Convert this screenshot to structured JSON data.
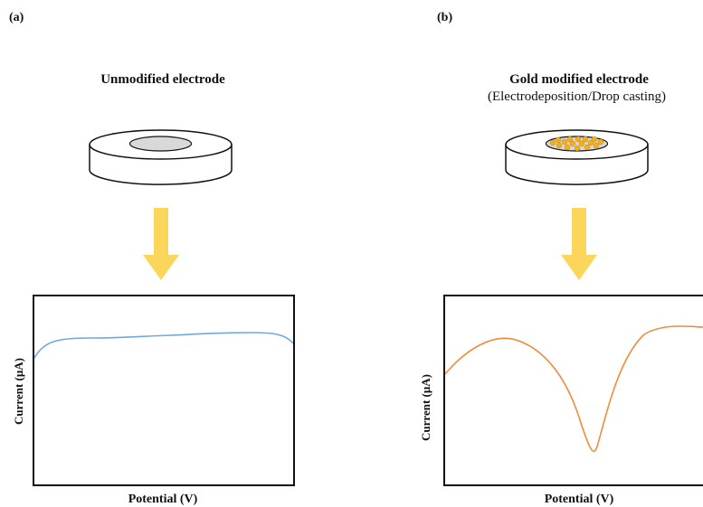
{
  "panels": {
    "a": {
      "label": "(a)",
      "title": "Unmodified electrode",
      "xlabel": "Potential (V)",
      "ylabel": "Current (μA)"
    },
    "b": {
      "label": "(b)",
      "title": "Gold modified electrode",
      "subtitle": "(Electrodeposition/Drop casting)",
      "xlabel": "Potential (V)",
      "ylabel": "Current (μA)"
    }
  },
  "colors": {
    "arrow": "#FBD65A",
    "curve_a": "#6FA8DC",
    "curve_b": "#F08A3C",
    "electrode_center": "#D9D9D9",
    "gold": "#F2B01E"
  },
  "icons": {
    "electrode_a": "unmodified-electrode-icon",
    "electrode_b": "gold-modified-electrode-icon",
    "arrow": "down-arrow-icon"
  }
}
